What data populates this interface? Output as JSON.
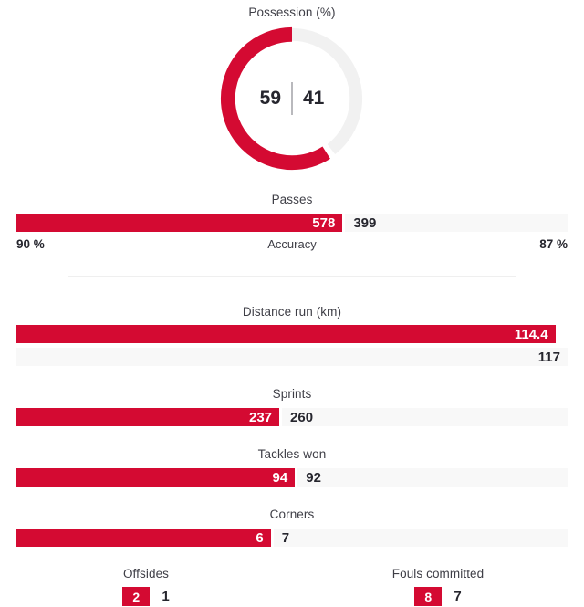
{
  "colors": {
    "accent": "#d40a32",
    "track": "#f8f8f8",
    "donut_rest": "#f1f1f1",
    "text_dark": "#26262e",
    "text_muted": "#3e3e46"
  },
  "possession": {
    "title": "Possession (%)",
    "home": 59,
    "away": 41
  },
  "passes": {
    "title": "Passes",
    "home": 578,
    "away": 399,
    "accuracy_label": "Accuracy",
    "home_accuracy": "90 %",
    "away_accuracy": "87 %"
  },
  "distance_run": {
    "title": "Distance run (km)",
    "home": 114.4,
    "away": 117
  },
  "bar_stats": [
    {
      "id": "sprints",
      "title": "Sprints",
      "home": 237,
      "away": 260
    },
    {
      "id": "tackles-won",
      "title": "Tackles won",
      "home": 94,
      "away": 92
    },
    {
      "id": "corners",
      "title": "Corners",
      "home": 6,
      "away": 7
    }
  ],
  "mini_stats": [
    {
      "id": "offsides",
      "title": "Offsides",
      "home": 2,
      "away": 1
    },
    {
      "id": "fouls-committed",
      "title": "Fouls committed",
      "home": 8,
      "away": 7
    }
  ],
  "chart_data": [
    {
      "type": "pie",
      "title": "Possession (%)",
      "categories": [
        "home",
        "away"
      ],
      "values": [
        59,
        41
      ],
      "note": "donut; home slice red drawn counterclockwise from top, away slice light grey"
    },
    {
      "type": "bar",
      "title": "Passes",
      "categories": [
        "home",
        "away"
      ],
      "values": [
        578,
        399
      ],
      "annotations": [
        "90 %",
        "Accuracy",
        "87 %"
      ],
      "note": "single split bar; red share = home/(home+away)"
    },
    {
      "type": "bar",
      "title": "Distance run (km)",
      "categories": [
        "home",
        "away"
      ],
      "values": [
        114.4,
        117
      ],
      "note": "two stacked horizontal bars scaled to max value 117"
    },
    {
      "type": "bar",
      "title": "Sprints",
      "categories": [
        "home",
        "away"
      ],
      "values": [
        237,
        260
      ]
    },
    {
      "type": "bar",
      "title": "Tackles won",
      "categories": [
        "home",
        "away"
      ],
      "values": [
        94,
        92
      ]
    },
    {
      "type": "bar",
      "title": "Corners",
      "categories": [
        "home",
        "away"
      ],
      "values": [
        6,
        7
      ]
    },
    {
      "type": "bar",
      "title": "Offsides",
      "categories": [
        "home",
        "away"
      ],
      "values": [
        2,
        1
      ]
    },
    {
      "type": "bar",
      "title": "Fouls committed",
      "categories": [
        "home",
        "away"
      ],
      "values": [
        8,
        7
      ]
    }
  ]
}
